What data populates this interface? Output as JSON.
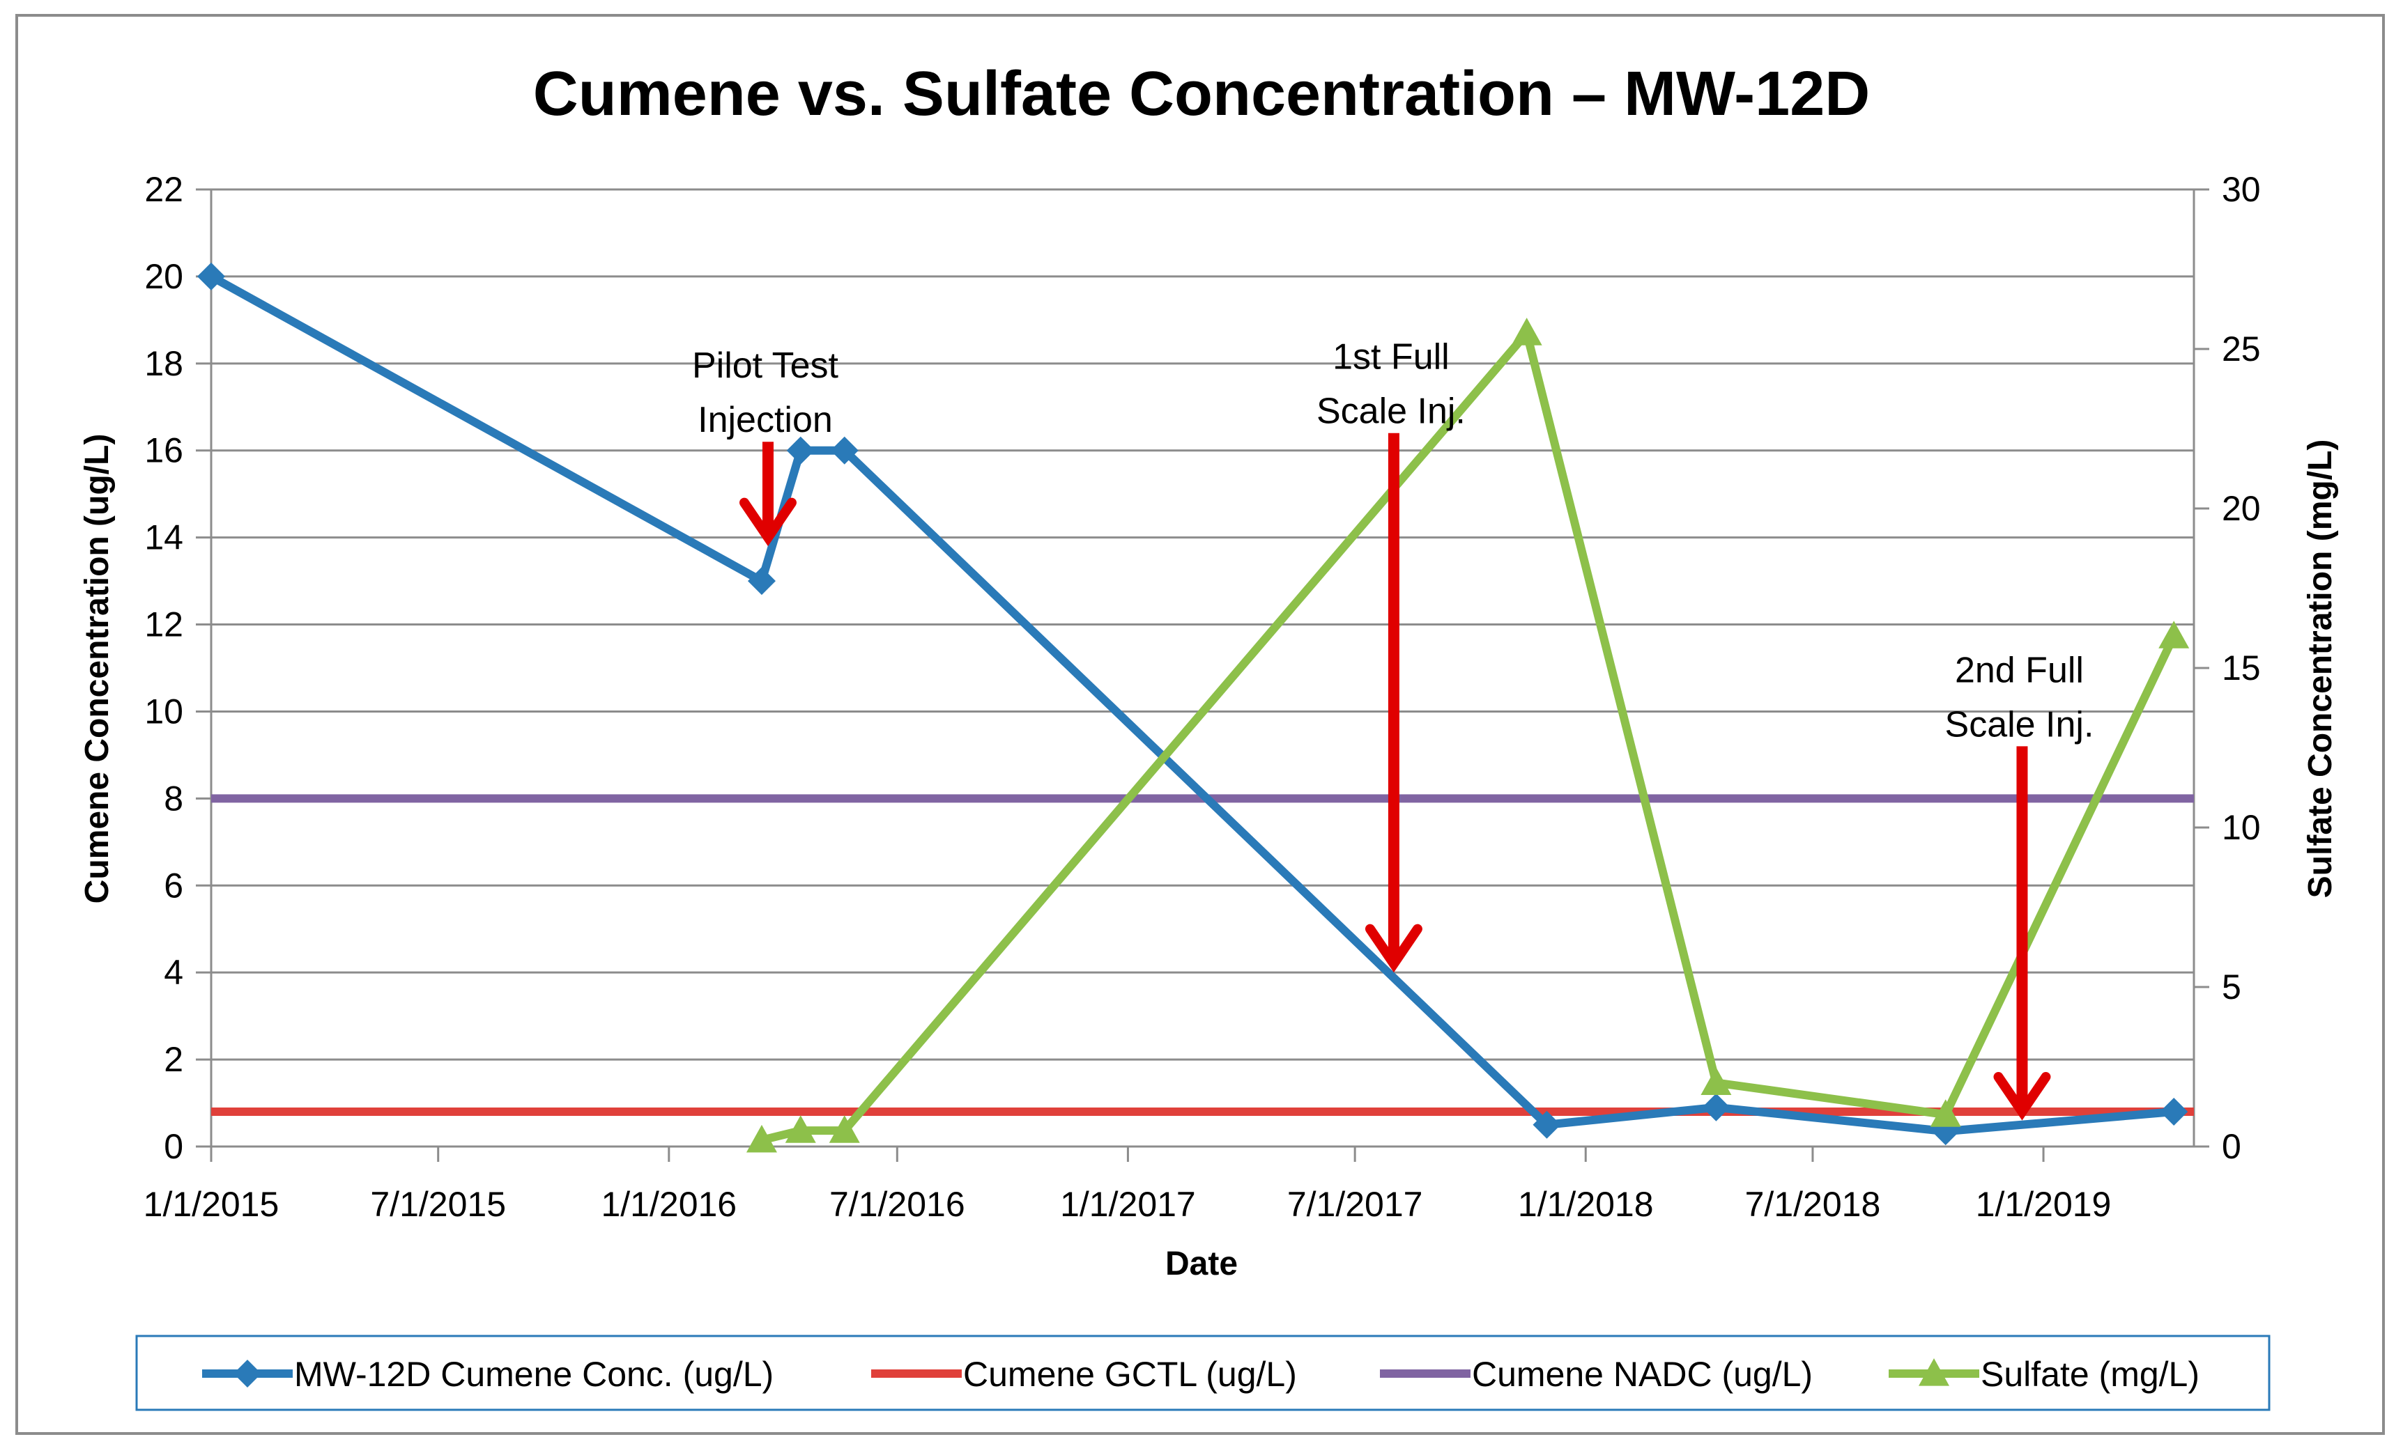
{
  "chart_data": {
    "type": "line",
    "title": "Cumene vs. Sulfate Concentration – MW-12D",
    "xlabel": "Date",
    "ylabel": "Cumene Concentration (ug/L)",
    "y2label": "Sulfate Concentration (mg/L)",
    "ylim": [
      0,
      22
    ],
    "y2lim": [
      0,
      30
    ],
    "xlim": [
      "1/1/2015",
      "5/1/2019"
    ],
    "x_ticks": [
      "1/1/2015",
      "7/1/2015",
      "1/1/2016",
      "7/1/2016",
      "1/1/2017",
      "7/1/2017",
      "1/1/2018",
      "7/1/2018",
      "1/1/2019"
    ],
    "y_ticks": [
      0,
      2,
      4,
      6,
      8,
      10,
      12,
      14,
      16,
      18,
      20,
      22
    ],
    "y2_ticks": [
      0,
      5,
      10,
      15,
      20,
      25,
      30
    ],
    "grid": true,
    "legend_position": "bottom",
    "series": [
      {
        "name": "MW-12D Cumene Conc. (ug/L)",
        "axis": "left",
        "color": "#2a7ab8",
        "marker": "diamond",
        "points": [
          {
            "x": "2015-01-01",
            "y": 20
          },
          {
            "x": "2016-03-15",
            "y": 13
          },
          {
            "x": "2016-04-15",
            "y": 16
          },
          {
            "x": "2016-05-20",
            "y": 16
          },
          {
            "x": "2017-12-01",
            "y": 0.5
          },
          {
            "x": "2018-04-15",
            "y": 0.9
          },
          {
            "x": "2018-10-15",
            "y": 0.35
          },
          {
            "x": "2019-04-15",
            "y": 0.8
          }
        ]
      },
      {
        "name": "Cumene GCTL (ug/L)",
        "axis": "left",
        "color": "#e0403a",
        "marker": "none",
        "points": [
          {
            "x": "2015-01-01",
            "y": 0.8
          },
          {
            "x": "2019-05-01",
            "y": 0.8
          }
        ]
      },
      {
        "name": "Cumene NADC (ug/L)",
        "axis": "left",
        "color": "#8064a2",
        "marker": "none",
        "points": [
          {
            "x": "2015-01-01",
            "y": 8
          },
          {
            "x": "2019-05-01",
            "y": 8
          }
        ]
      },
      {
        "name": "Sulfate (mg/L)",
        "axis": "right",
        "color": "#8dc04a",
        "marker": "triangle",
        "points": [
          {
            "x": "2016-03-15",
            "y": 0.2
          },
          {
            "x": "2016-04-15",
            "y": 0.5
          },
          {
            "x": "2016-05-20",
            "y": 0.5
          },
          {
            "x": "2017-11-15",
            "y": 25.5
          },
          {
            "x": "2018-04-15",
            "y": 2
          },
          {
            "x": "2018-10-15",
            "y": 1
          },
          {
            "x": "2019-04-15",
            "y": 16
          }
        ]
      }
    ],
    "annotations": [
      {
        "lines": [
          "Pilot Test",
          "Injection"
        ],
        "arrow_x": "2016-03-20",
        "arrow_from_y": 16.2,
        "arrow_to_y": 14,
        "color": "#e00000"
      },
      {
        "lines": [
          "1st Full",
          "Scale Inj."
        ],
        "arrow_x": "2017-08-01",
        "arrow_from_y": 16.4,
        "arrow_to_y": 4.2,
        "color": "#e00000"
      },
      {
        "lines": [
          "2nd Full",
          "Scale Inj."
        ],
        "arrow_x": "2018-12-15",
        "arrow_from_y": 9.2,
        "arrow_to_y": 0.8,
        "color": "#e00000"
      }
    ]
  }
}
